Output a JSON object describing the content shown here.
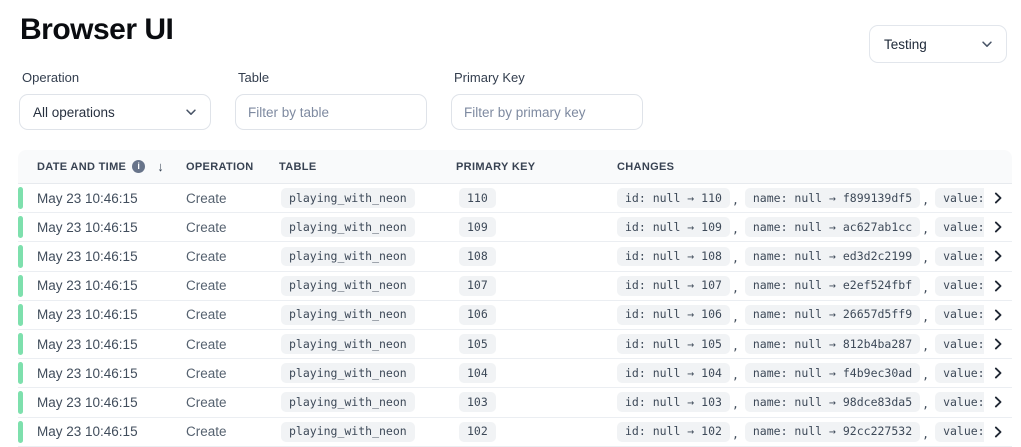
{
  "page": {
    "title": "Browser UI"
  },
  "branch_selector": {
    "value": "Testing"
  },
  "filters": {
    "operation": {
      "label": "Operation",
      "value": "All operations"
    },
    "table": {
      "label": "Table",
      "placeholder": "Filter by table"
    },
    "primary_key": {
      "label": "Primary Key",
      "placeholder": "Filter by primary key"
    }
  },
  "table": {
    "columns": [
      "DATE AND TIME",
      "OPERATION",
      "TABLE",
      "PRIMARY KEY",
      "CHANGES"
    ],
    "sort": {
      "column": "DATE AND TIME",
      "direction": "descending",
      "icon": "↓"
    },
    "rows": [
      {
        "datetime": "May 23 10:46:15",
        "operation": "Create",
        "table": "playing_with_neon",
        "primary_key": "110",
        "changes": [
          "id: null → 110",
          "name: null → f899139df5",
          "value:"
        ]
      },
      {
        "datetime": "May 23 10:46:15",
        "operation": "Create",
        "table": "playing_with_neon",
        "primary_key": "109",
        "changes": [
          "id: null → 109",
          "name: null → ac627ab1cc",
          "value:"
        ]
      },
      {
        "datetime": "May 23 10:46:15",
        "operation": "Create",
        "table": "playing_with_neon",
        "primary_key": "108",
        "changes": [
          "id: null → 108",
          "name: null → ed3d2c2199",
          "value:"
        ]
      },
      {
        "datetime": "May 23 10:46:15",
        "operation": "Create",
        "table": "playing_with_neon",
        "primary_key": "107",
        "changes": [
          "id: null → 107",
          "name: null → e2ef524fbf",
          "value:"
        ]
      },
      {
        "datetime": "May 23 10:46:15",
        "operation": "Create",
        "table": "playing_with_neon",
        "primary_key": "106",
        "changes": [
          "id: null → 106",
          "name: null → 26657d5ff9",
          "value:"
        ]
      },
      {
        "datetime": "May 23 10:46:15",
        "operation": "Create",
        "table": "playing_with_neon",
        "primary_key": "105",
        "changes": [
          "id: null → 105",
          "name: null → 812b4ba287",
          "value:"
        ]
      },
      {
        "datetime": "May 23 10:46:15",
        "operation": "Create",
        "table": "playing_with_neon",
        "primary_key": "104",
        "changes": [
          "id: null → 104",
          "name: null → f4b9ec30ad",
          "value:"
        ]
      },
      {
        "datetime": "May 23 10:46:15",
        "operation": "Create",
        "table": "playing_with_neon",
        "primary_key": "103",
        "changes": [
          "id: null → 103",
          "name: null → 98dce83da5",
          "value:"
        ]
      },
      {
        "datetime": "May 23 10:46:15",
        "operation": "Create",
        "table": "playing_with_neon",
        "primary_key": "102",
        "changes": [
          "id: null → 102",
          "name: null → 92cc227532",
          "value:"
        ]
      }
    ]
  },
  "colors": {
    "row_accent_green": "#7ee0ad",
    "badge_background": "#f1f3f5",
    "header_background": "#f9fafb"
  }
}
